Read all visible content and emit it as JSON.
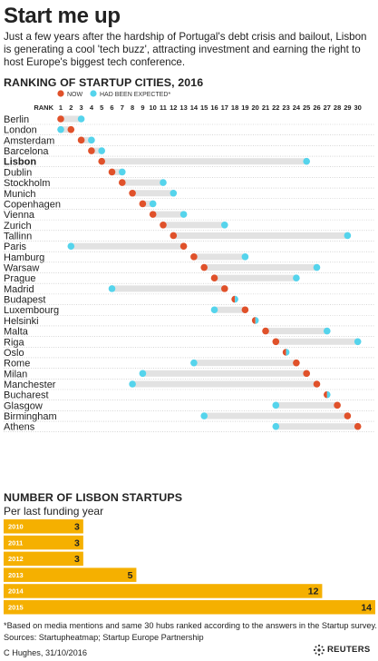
{
  "title": "Start me up",
  "intro": "Just a few years after the hardship of Portugal's debt crisis and bailout, Lisbon is generating a cool 'tech buzz', attracting investment and earning the right to host Europe's biggest tech conference.",
  "ranking_title": "RANKING OF STARTUP CITIES, 2016",
  "startups_title": "NUMBER OF LISBON STARTUPS",
  "startups_subtitle": "Per last funding year",
  "footnote": "*Based on media mentions and same 30 hubs ranked according to the answers in the Startup survey.",
  "sources": "Sources: Startupheatmap; Startup Europe Partnership",
  "credit": "C Hughes, 31/10/2016",
  "logo_text": "REUTERS",
  "colors": {
    "now": "#e0512a",
    "expected": "#55d4ec",
    "track": "#e2e2e2",
    "bar": "#f5b000",
    "bar_label": "#ffffff"
  },
  "chart_data": [
    {
      "type": "dot-range",
      "title": "RANKING OF STARTUP CITIES, 2016",
      "xlabel": "RANK",
      "x_ticks": [
        1,
        2,
        3,
        4,
        5,
        6,
        7,
        8,
        9,
        10,
        11,
        12,
        13,
        14,
        15,
        16,
        17,
        18,
        19,
        20,
        21,
        22,
        23,
        24,
        25,
        26,
        27,
        28,
        29,
        30
      ],
      "xlim": [
        1,
        30
      ],
      "legend": [
        "NOW",
        "HAD BEEN EXPECTED*"
      ],
      "legend_placement": "top",
      "highlight": "Lisbon",
      "cities": [
        "Berlin",
        "London",
        "Amsterdam",
        "Barcelona",
        "Lisbon",
        "Dublin",
        "Stockholm",
        "Munich",
        "Copenhagen",
        "Vienna",
        "Zurich",
        "Tallinn",
        "Paris",
        "Hamburg",
        "Warsaw",
        "Prague",
        "Madrid",
        "Budapest",
        "Luxembourg",
        "Helsinki",
        "Malta",
        "Riga",
        "Oslo",
        "Rome",
        "Milan",
        "Manchester",
        "Bucharest",
        "Glasgow",
        "Birmingham",
        "Athens"
      ],
      "now": [
        1,
        2,
        3,
        4,
        5,
        6,
        7,
        8,
        9,
        10,
        11,
        12,
        13,
        14,
        15,
        16,
        17,
        18,
        19,
        20,
        21,
        22,
        23,
        24,
        25,
        26,
        27,
        28,
        29,
        30
      ],
      "expected": [
        3,
        1,
        4,
        5,
        25,
        7,
        11,
        12,
        10,
        13,
        17,
        29,
        2,
        19,
        26,
        24,
        6,
        18,
        16,
        20,
        27,
        30,
        23,
        14,
        9,
        8,
        27,
        22,
        15,
        22
      ]
    },
    {
      "type": "bar",
      "orientation": "horizontal",
      "title": "NUMBER OF LISBON STARTUPS",
      "subtitle": "Per last funding year",
      "categories": [
        "2010",
        "2011",
        "2012",
        "2013",
        "2014",
        "2015"
      ],
      "values": [
        3,
        3,
        3,
        5,
        12,
        14
      ],
      "xlim": [
        0,
        14
      ]
    }
  ]
}
